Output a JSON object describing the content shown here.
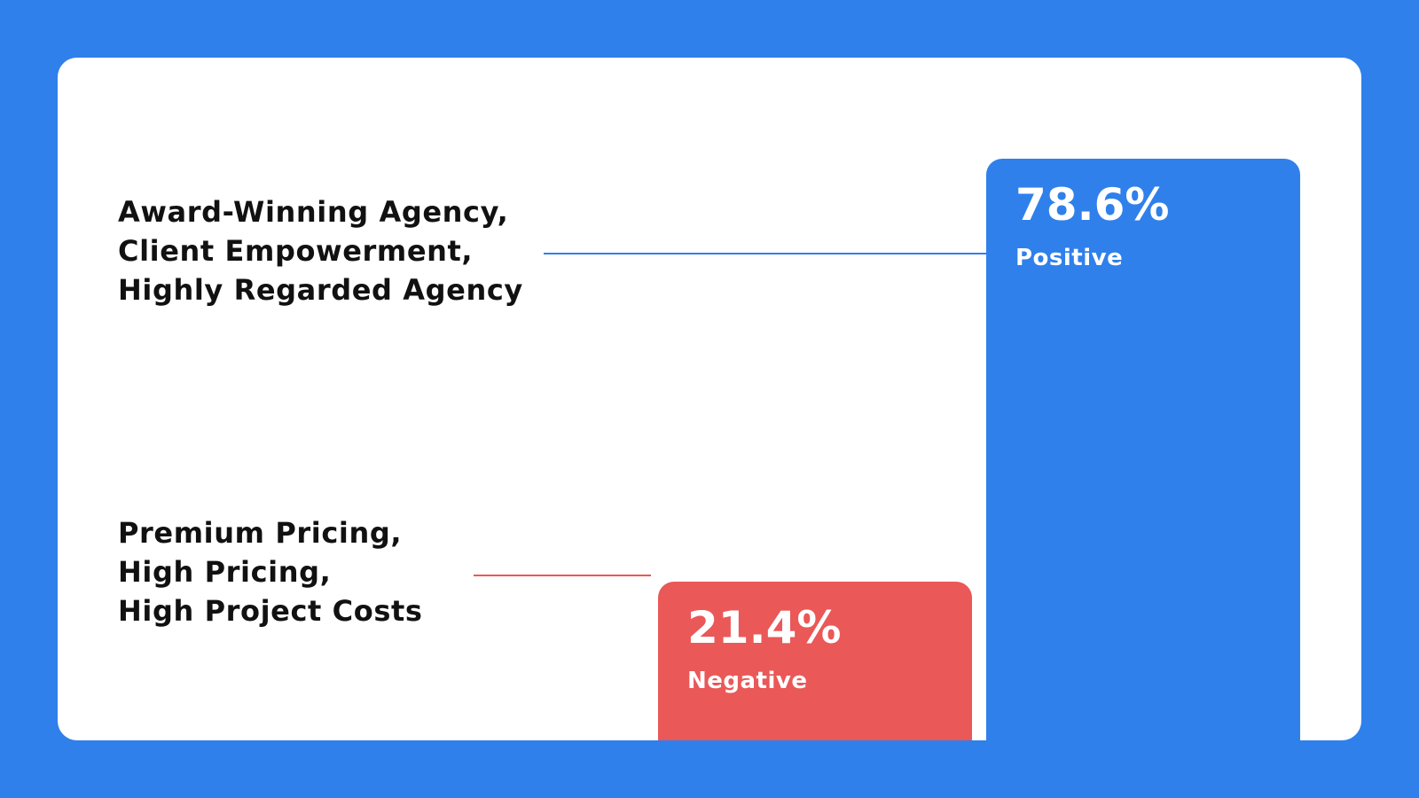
{
  "colors": {
    "background": "#2f80eb",
    "card": "#ffffff",
    "positive": "#2f80eb",
    "negative": "#ea5858",
    "text": "#111111"
  },
  "chart_data": {
    "type": "bar",
    "ylim": [
      0,
      100
    ],
    "grid": false,
    "categories": [
      "Negative",
      "Positive"
    ],
    "values": [
      21.4,
      78.6
    ],
    "value_labels": [
      "21.4%",
      "78.6%"
    ],
    "themes": {
      "positive": [
        "Award-Winning Agency,",
        "Client Empowerment,",
        "Highly Regarded Agency"
      ],
      "negative": [
        "Premium Pricing,",
        "High Pricing,",
        "High Project Costs"
      ]
    }
  }
}
